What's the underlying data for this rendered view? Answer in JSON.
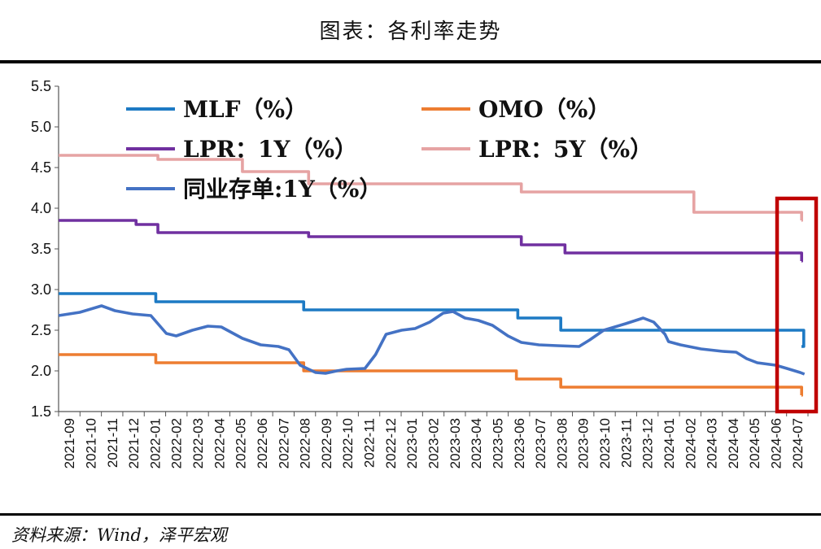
{
  "title": "图表：各利率走势",
  "source": "资料来源：Wind，泽平宏观",
  "chart_data": {
    "type": "line",
    "ylim": [
      1.5,
      5.5
    ],
    "yticks": [
      "1.5",
      "2.0",
      "2.5",
      "3.0",
      "3.5",
      "4.0",
      "4.5",
      "5.0",
      "5.5"
    ],
    "x_labels": [
      "2021-09",
      "2021-10",
      "2021-11",
      "2021-12",
      "2022-01",
      "2022-02",
      "2022-03",
      "2022-04",
      "2022-05",
      "2022-06",
      "2022-07",
      "2022-08",
      "2022-09",
      "2022-10",
      "2022-11",
      "2022-12",
      "2023-01",
      "2023-02",
      "2023-03",
      "2023-04",
      "2023-05",
      "2023-06",
      "2023-07",
      "2023-08",
      "2023-09",
      "2023-10",
      "2023-11",
      "2023-12",
      "2024-01",
      "2024-02",
      "2024-03",
      "2024-04",
      "2024-05",
      "2024-06",
      "2024-07"
    ],
    "x_range": [
      "2021-09-01",
      "2024-07-31"
    ],
    "legend_placement": "top-left, inside plot",
    "series": [
      {
        "name": "MLF（%）",
        "color": "#1d7ac4",
        "step": true,
        "points": [
          [
            "2021-09-01",
            2.95
          ],
          [
            "2022-01-17",
            2.85
          ],
          [
            "2022-08-15",
            2.75
          ],
          [
            "2023-06-15",
            2.65
          ],
          [
            "2023-08-15",
            2.5
          ],
          [
            "2024-07-25",
            2.3
          ]
        ]
      },
      {
        "name": "OMO（%）",
        "color": "#ed7d31",
        "step": true,
        "points": [
          [
            "2021-09-01",
            2.2
          ],
          [
            "2022-01-17",
            2.1
          ],
          [
            "2022-08-15",
            2.0
          ],
          [
            "2023-06-13",
            1.9
          ],
          [
            "2023-08-15",
            1.8
          ],
          [
            "2024-07-22",
            1.7
          ]
        ]
      },
      {
        "name": "LPR：1Y（%）",
        "color": "#7030a0",
        "step": true,
        "points": [
          [
            "2021-09-01",
            3.85
          ],
          [
            "2021-12-20",
            3.8
          ],
          [
            "2022-01-20",
            3.7
          ],
          [
            "2022-08-22",
            3.65
          ],
          [
            "2023-06-20",
            3.55
          ],
          [
            "2023-08-21",
            3.45
          ],
          [
            "2024-07-22",
            3.35
          ]
        ]
      },
      {
        "name": "LPR：5Y（%）",
        "color": "#e6a3a3",
        "step": true,
        "points": [
          [
            "2021-09-01",
            4.65
          ],
          [
            "2022-01-20",
            4.6
          ],
          [
            "2022-05-20",
            4.45
          ],
          [
            "2022-08-22",
            4.3
          ],
          [
            "2023-06-20",
            4.2
          ],
          [
            "2024-02-20",
            3.95
          ],
          [
            "2024-07-22",
            3.85
          ]
        ]
      },
      {
        "name": "同业存单:1Y（%）",
        "color": "#4472c4",
        "step": false,
        "points": [
          [
            "2021-09-01",
            2.68
          ],
          [
            "2021-10-01",
            2.72
          ],
          [
            "2021-11-01",
            2.8
          ],
          [
            "2021-11-20",
            2.74
          ],
          [
            "2021-12-15",
            2.7
          ],
          [
            "2022-01-10",
            2.68
          ],
          [
            "2022-02-01",
            2.46
          ],
          [
            "2022-02-15",
            2.43
          ],
          [
            "2022-03-10",
            2.5
          ],
          [
            "2022-04-01",
            2.55
          ],
          [
            "2022-04-20",
            2.54
          ],
          [
            "2022-05-20",
            2.4
          ],
          [
            "2022-06-15",
            2.32
          ],
          [
            "2022-07-10",
            2.3
          ],
          [
            "2022-07-25",
            2.26
          ],
          [
            "2022-08-10",
            2.07
          ],
          [
            "2022-09-01",
            1.98
          ],
          [
            "2022-09-15",
            1.97
          ],
          [
            "2022-10-01",
            2.0
          ],
          [
            "2022-10-15",
            2.02
          ],
          [
            "2022-11-10",
            2.03
          ],
          [
            "2022-11-25",
            2.2
          ],
          [
            "2022-12-10",
            2.45
          ],
          [
            "2023-01-01",
            2.5
          ],
          [
            "2023-01-20",
            2.52
          ],
          [
            "2023-02-10",
            2.6
          ],
          [
            "2023-03-01",
            2.71
          ],
          [
            "2023-03-15",
            2.73
          ],
          [
            "2023-04-01",
            2.65
          ],
          [
            "2023-04-20",
            2.62
          ],
          [
            "2023-05-10",
            2.56
          ],
          [
            "2023-06-01",
            2.43
          ],
          [
            "2023-06-20",
            2.35
          ],
          [
            "2023-07-15",
            2.32
          ],
          [
            "2023-08-10",
            2.31
          ],
          [
            "2023-09-10",
            2.3
          ],
          [
            "2023-09-25",
            2.38
          ],
          [
            "2023-10-15",
            2.5
          ],
          [
            "2023-11-15",
            2.58
          ],
          [
            "2023-12-10",
            2.65
          ],
          [
            "2023-12-25",
            2.6
          ],
          [
            "2024-01-10",
            2.45
          ],
          [
            "2024-01-15",
            2.36
          ],
          [
            "2024-02-01",
            2.32
          ],
          [
            "2024-03-01",
            2.27
          ],
          [
            "2024-04-01",
            2.24
          ],
          [
            "2024-04-20",
            2.23
          ],
          [
            "2024-05-05",
            2.15
          ],
          [
            "2024-05-20",
            2.1
          ],
          [
            "2024-06-15",
            2.07
          ],
          [
            "2024-07-01",
            2.03
          ],
          [
            "2024-07-20",
            1.98
          ],
          [
            "2024-07-26",
            1.96
          ]
        ]
      }
    ],
    "annotation": {
      "type": "box",
      "color": "#c00000",
      "from": "2024-07-01",
      "to": "2024-07-31",
      "ymin": 1.6,
      "ymax": 4.0
    }
  }
}
